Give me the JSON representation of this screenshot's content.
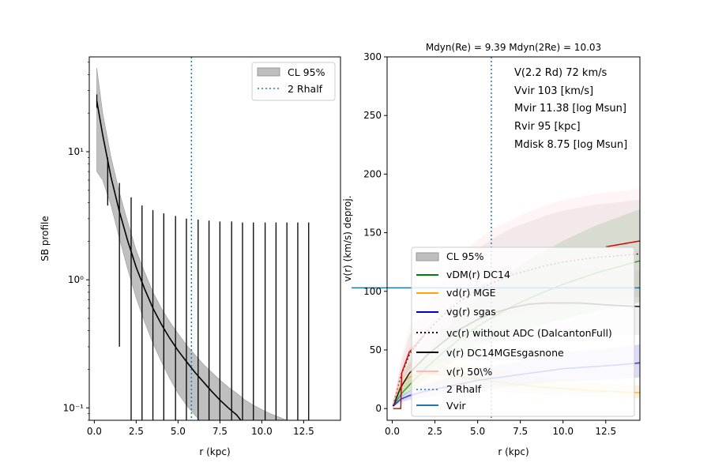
{
  "chart_data": [
    {
      "type": "line",
      "xlabel": "r (kpc)",
      "ylabel": "SB profile",
      "xlim": [
        -0.3,
        14.7
      ],
      "ylim": [
        0.08,
        55
      ],
      "yscale": "log",
      "grid": false,
      "xticks": [
        0.0,
        2.5,
        5.0,
        7.5,
        10.0,
        12.5
      ],
      "xtick_labels": [
        "0.0",
        "2.5",
        "5.0",
        "7.5",
        "10.0",
        "12.5"
      ],
      "yticks": [
        0.1,
        1,
        10
      ],
      "ytick_labels": [
        "10⁻¹",
        "10⁰",
        "10¹"
      ],
      "rhalf2": 5.8,
      "model_x": [
        0.15,
        0.5,
        1.0,
        1.5,
        2.0,
        2.5,
        3.0,
        3.5,
        4.0,
        4.5,
        5.0,
        5.5,
        6.0,
        6.5,
        7.0,
        7.5,
        8.0,
        8.5,
        8.75
      ],
      "model_y": [
        25.0,
        13.5,
        6.3,
        3.4,
        2.0,
        1.25,
        0.85,
        0.6,
        0.45,
        0.35,
        0.28,
        0.23,
        0.19,
        0.16,
        0.135,
        0.115,
        0.1,
        0.088,
        0.08
      ],
      "band_x": [
        0.15,
        0.5,
        1.0,
        1.5,
        2.0,
        2.5,
        3.0,
        3.5,
        4.0,
        4.5,
        5.0,
        5.5,
        6.0,
        6.5,
        7.0,
        7.5,
        8.0,
        8.5,
        9.0,
        9.5,
        10.0,
        10.5,
        11.0,
        11.5
      ],
      "band_upper": [
        45,
        20,
        9.0,
        4.8,
        2.8,
        1.7,
        1.15,
        0.8,
        0.6,
        0.47,
        0.38,
        0.31,
        0.26,
        0.22,
        0.19,
        0.165,
        0.145,
        0.13,
        0.115,
        0.105,
        0.097,
        0.09,
        0.085,
        0.08
      ],
      "band_lower": [
        7.0,
        6.0,
        3.8,
        2.1,
        1.2,
        0.72,
        0.47,
        0.32,
        0.23,
        0.17,
        0.13,
        0.105,
        0.088,
        0.08
      ],
      "band_lower_x": [
        0.15,
        0.5,
        1.0,
        1.5,
        2.0,
        2.5,
        3.0,
        3.5,
        4.0,
        4.5,
        5.0,
        5.5,
        6.0,
        6.3
      ],
      "err_x": [
        0.15,
        0.8,
        1.5,
        2.2,
        2.85,
        3.5,
        4.15,
        4.85,
        5.5,
        6.2,
        6.85,
        7.5,
        8.2,
        8.85,
        9.5,
        10.2,
        10.85,
        11.5,
        12.15,
        12.8
      ],
      "err_low": [
        22,
        3.8,
        0.3,
        0.08,
        0.08,
        0.08,
        0.08,
        0.08,
        0.08,
        0.08,
        0.08,
        0.08,
        0.08,
        0.08,
        0.08,
        0.08,
        0.08,
        0.08,
        0.08,
        0.08
      ],
      "err_high": [
        28,
        9.0,
        5.7,
        4.4,
        3.8,
        3.5,
        3.3,
        3.15,
        3.0,
        2.95,
        2.9,
        2.85,
        2.85,
        2.8,
        2.8,
        2.8,
        2.8,
        2.8,
        2.8,
        2.8
      ],
      "legend": [
        "CL 95%",
        "2 Rhalf"
      ],
      "legend_position": "top-right"
    },
    {
      "type": "line",
      "title": "Mdyn(Re) = 9.39  Mdyn(2Re) = 10.03",
      "xlabel": "r (kpc)",
      "ylabel": "v(r) (km/s) deproj.",
      "xlim": [
        -0.3,
        14.5
      ],
      "ylim": [
        -10,
        300
      ],
      "grid": false,
      "xticks": [
        0.0,
        2.5,
        5.0,
        7.5,
        10.0,
        12.5
      ],
      "xtick_labels": [
        "0.0",
        "2.5",
        "5.0",
        "7.5",
        "10.0",
        "12.5"
      ],
      "yticks": [
        0,
        50,
        100,
        150,
        200,
        250,
        300
      ],
      "ytick_labels": [
        "0",
        "50",
        "100",
        "150",
        "200",
        "250",
        "300"
      ],
      "annotations": [
        "V(2.2 Rd) 72 km/s",
        "Vvir 103 [km/s]",
        "Mvir 11.38 [log Msun]",
        "Rvir 95 [kpc]",
        "Mdisk 8.75 [log Msun]"
      ],
      "rhalf2": 5.8,
      "vvir": 103,
      "x": [
        0.05,
        0.5,
        1,
        2,
        3,
        4,
        5,
        6,
        7,
        8,
        9,
        10,
        11,
        12,
        13,
        14.5
      ],
      "series": [
        {
          "name": "vDM(r) DC14",
          "color": "#008000",
          "values": [
            2,
            12,
            20,
            35,
            48,
            60,
            70,
            79,
            87,
            94,
            100,
            106,
            111,
            116,
            120,
            126
          ]
        },
        {
          "name": "vd(r) MGE",
          "color": "#ffa500",
          "values": [
            2,
            20,
            27,
            30,
            29,
            27,
            25,
            23,
            21,
            19.5,
            18,
            17,
            16,
            15,
            14.5,
            13.5
          ]
        },
        {
          "name": "vg(r) sgas",
          "color": "#0000cc",
          "values": [
            2,
            8,
            11,
            15,
            18,
            21,
            24,
            26,
            28,
            30,
            32,
            34,
            35,
            36,
            37,
            39
          ]
        },
        {
          "name": "vc(r) without ADC (DalcantonFull)",
          "color": "#000000",
          "values": [
            3,
            28,
            46,
            65,
            80,
            92,
            101,
            108,
            114,
            118,
            122,
            125,
            127,
            129,
            130,
            132
          ]
        },
        {
          "name": "v(r) DC14MGEsgasnone",
          "color": "#000000",
          "values": [
            2,
            18,
            30,
            45,
            57,
            68,
            76,
            82,
            86,
            89,
            90,
            90,
            90,
            89,
            88,
            87
          ]
        },
        {
          "name": "v(r) 50\\%",
          "color": "#ffb6c1",
          "values": [
            3,
            30,
            50,
            68,
            82,
            94,
            103,
            110,
            115,
            120,
            124,
            127,
            129,
            131,
            132,
            134
          ]
        }
      ],
      "legend": [
        "CL 95%",
        "vDM(r) DC14",
        "vd(r) MGE",
        "vg(r) sgas",
        "vc(r) without ADC (DalcantonFull)",
        "v(r) DC14MGEsgasnone",
        "v(r) 50\\%",
        "2 Rhalf",
        "Vvir"
      ],
      "legend_position": "lower-right"
    }
  ]
}
